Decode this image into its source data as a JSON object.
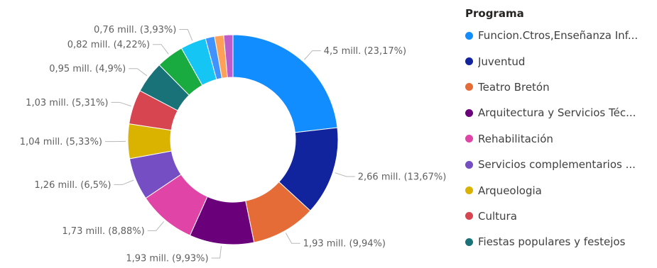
{
  "legend": {
    "title": "Programa",
    "items": [
      {
        "label": "Funcion.Ctros,Enseñanza Inf...",
        "color": "#118DFF"
      },
      {
        "label": "Juventud",
        "color": "#12239E"
      },
      {
        "label": "Teatro Bretón",
        "color": "#E66C37"
      },
      {
        "label": "Arquitectura y Servicios Téc...",
        "color": "#6B007B"
      },
      {
        "label": "Rehabilitación",
        "color": "#E044A7"
      },
      {
        "label": "Servicios complementarios ...",
        "color": "#744EC2"
      },
      {
        "label": "Arqueologia",
        "color": "#D9B300"
      },
      {
        "label": "Cultura",
        "color": "#D64550"
      },
      {
        "label": "Fiestas populares y festejos",
        "color": "#197278"
      }
    ]
  },
  "chart_data": {
    "type": "donut",
    "title": "",
    "slices": [
      {
        "value": 4.5,
        "percent": 23.17,
        "label": "4,5 mill. (23,17%)",
        "color": "#118DFF"
      },
      {
        "value": 2.66,
        "percent": 13.67,
        "label": "2,66 mill. (13,67%)",
        "color": "#12239E"
      },
      {
        "value": 1.93,
        "percent": 9.94,
        "label": "1,93 mill. (9,94%)",
        "color": "#E66C37"
      },
      {
        "value": 1.93,
        "percent": 9.93,
        "label": "1,93 mill. (9,93%)",
        "color": "#6B007B"
      },
      {
        "value": 1.73,
        "percent": 8.88,
        "label": "1,73 mill. (8,88%)",
        "color": "#E044A7"
      },
      {
        "value": 1.26,
        "percent": 6.5,
        "label": "1,26 mill. (6,5%)",
        "color": "#744EC2"
      },
      {
        "value": 1.04,
        "percent": 5.33,
        "label": "1,04 mill. (5,33%)",
        "color": "#D9B300"
      },
      {
        "value": 1.03,
        "percent": 5.31,
        "label": "1,03 mill. (5,31%)",
        "color": "#D64550"
      },
      {
        "value": 0.95,
        "percent": 4.9,
        "label": "0,95 mill. (4,9%)",
        "color": "#197278"
      },
      {
        "value": 0.82,
        "percent": 4.22,
        "label": "0,82 mill. (4,22%)",
        "color": "#1AAB40"
      },
      {
        "value": 0.76,
        "percent": 3.93,
        "label": "0,76 mill. (3,93%)",
        "color": "#15C6F4"
      },
      {
        "value": null,
        "percent": null,
        "label": "",
        "color": "#4092FF"
      },
      {
        "value": null,
        "percent": null,
        "label": "",
        "color": "#FFA058"
      },
      {
        "value": null,
        "percent": null,
        "label": "",
        "color": "#BE5DC9"
      }
    ]
  }
}
